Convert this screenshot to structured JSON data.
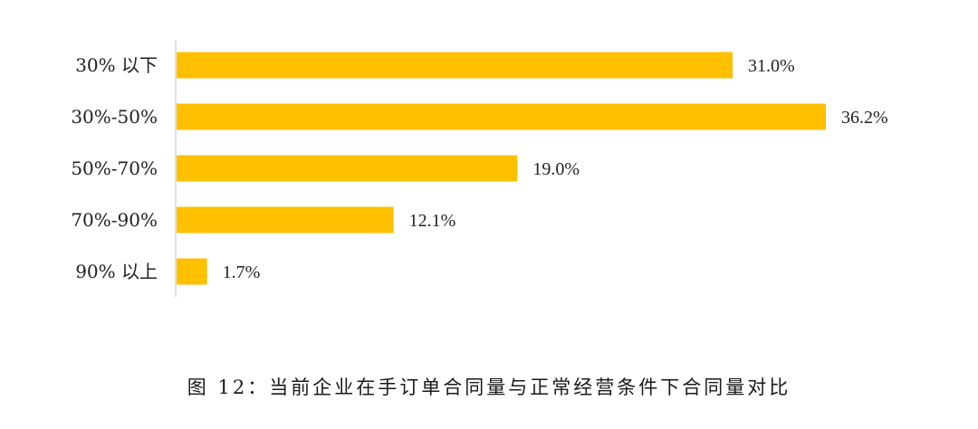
{
  "chart_data": {
    "type": "bar",
    "orientation": "horizontal",
    "categories": [
      "30% 以下",
      "30%-50%",
      "50%-70%",
      "70%-90%",
      "90% 以上"
    ],
    "values": [
      31.0,
      36.2,
      19.0,
      12.1,
      1.7
    ],
    "value_labels": [
      "31.0%",
      "36.2%",
      "19.0%",
      "12.1%",
      "1.7%"
    ],
    "unit": "%",
    "xlim": [
      0,
      36.2
    ],
    "bar_color": "#FFC000",
    "axis_color": "#d9d9d9",
    "grid": false,
    "legend": "none"
  },
  "caption": "图 12：当前企业在手订单合同量与正常经营条件下合同量对比"
}
